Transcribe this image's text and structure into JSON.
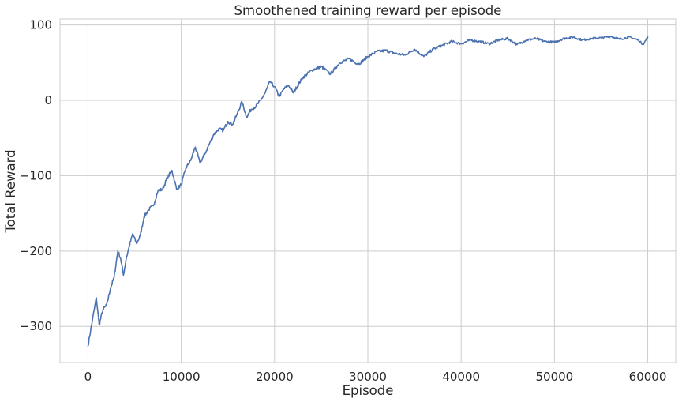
{
  "chart_data": {
    "type": "line",
    "title": "Smoothened training reward per episode",
    "xlabel": "Episode",
    "ylabel": "Total Reward",
    "xlim": [
      -3000,
      63000
    ],
    "ylim": [
      -348,
      108
    ],
    "xticks": [
      0,
      10000,
      20000,
      30000,
      40000,
      50000,
      60000
    ],
    "yticks": [
      -300,
      -200,
      -100,
      0,
      100
    ],
    "ytick_labels": [
      "−300",
      "−200",
      "−100",
      "0",
      "100"
    ],
    "grid": true,
    "legend": "none",
    "style": {
      "line_color": "#4c72b0",
      "grid_color": "#cccccc",
      "frame_color": "#cccccc",
      "background": "#ffffff"
    },
    "series": [
      {
        "x": [
          0,
          500,
          900,
          1200,
          1600,
          2000,
          2400,
          2800,
          3200,
          3500,
          3800,
          4100,
          4400,
          4800,
          5200,
          5600,
          6000,
          6500,
          7000,
          7500,
          8000,
          8500,
          9000,
          9500,
          10000,
          10500,
          11000,
          11500,
          12000,
          12500,
          13000,
          13500,
          14000,
          14500,
          15000,
          15500,
          16000,
          16500,
          17000,
          17500,
          18000,
          18500,
          19000,
          19500,
          20000,
          20500,
          21000,
          21500,
          22000,
          23000,
          24000,
          25000,
          26000,
          27000,
          28000,
          29000,
          30000,
          31000,
          32000,
          33000,
          34000,
          35000,
          36000,
          37000,
          38000,
          39000,
          40000,
          41000,
          42000,
          43000,
          44000,
          45000,
          46000,
          47000,
          48000,
          49000,
          50000,
          51000,
          52000,
          53000,
          54000,
          55000,
          56000,
          57000,
          58000,
          59000,
          59500,
          60000
        ],
        "y": [
          -326,
          -290,
          -262,
          -298,
          -278,
          -272,
          -250,
          -235,
          -200,
          -210,
          -232,
          -210,
          -195,
          -177,
          -190,
          -180,
          -155,
          -145,
          -140,
          -120,
          -118,
          -103,
          -93,
          -118,
          -112,
          -90,
          -80,
          -62,
          -83,
          -72,
          -58,
          -45,
          -38,
          -40,
          -28,
          -32,
          -18,
          -2,
          -22,
          -12,
          -8,
          0,
          10,
          25,
          18,
          5,
          15,
          20,
          10,
          30,
          40,
          45,
          35,
          50,
          55,
          48,
          58,
          65,
          66,
          62,
          60,
          68,
          58,
          68,
          73,
          78,
          75,
          80,
          78,
          75,
          80,
          82,
          74,
          80,
          82,
          78,
          77,
          82,
          84,
          80,
          82,
          83,
          85,
          81,
          84,
          80,
          74,
          84
        ]
      }
    ]
  }
}
